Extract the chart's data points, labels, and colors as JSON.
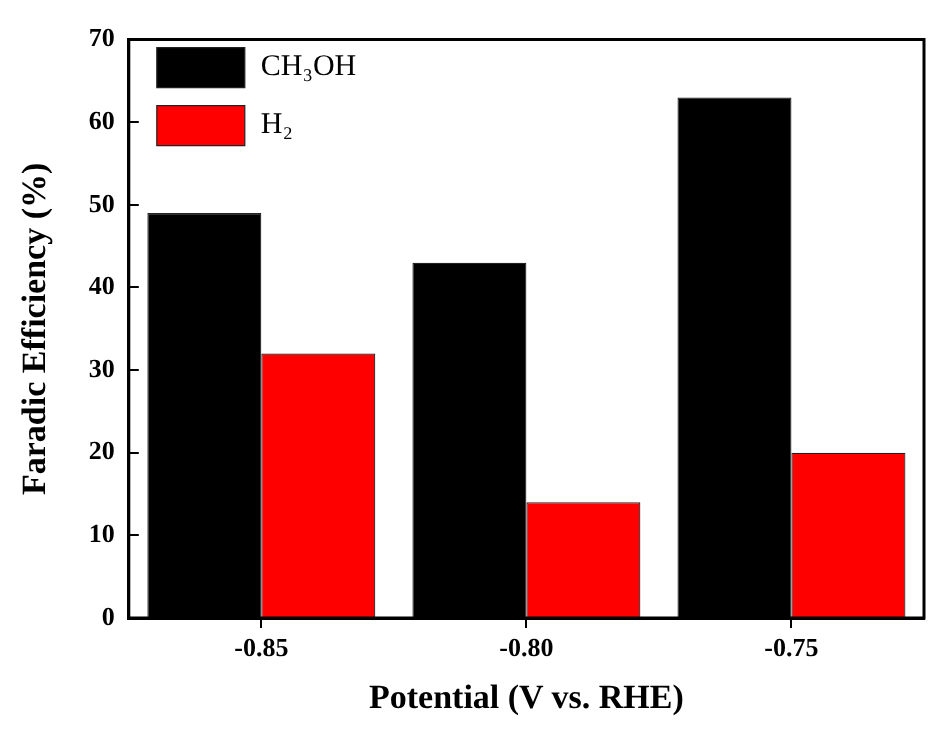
{
  "chart_data": {
    "type": "bar",
    "xlabel": "Potential (V vs. RHE)",
    "ylabel": "Faradic Efficiency (%)",
    "categories": [
      "-0.85",
      "-0.80",
      "-0.75"
    ],
    "series": [
      {
        "name": "CH₃OH",
        "color": "#000000",
        "values": [
          49,
          43,
          63
        ]
      },
      {
        "name": "H₂",
        "color": "#ff0000",
        "values": [
          32,
          14,
          20
        ]
      }
    ],
    "ylim": [
      0,
      70
    ],
    "yticks": [
      0,
      10,
      20,
      30,
      40,
      50,
      60,
      70
    ],
    "grid": false,
    "legend": "top left"
  }
}
